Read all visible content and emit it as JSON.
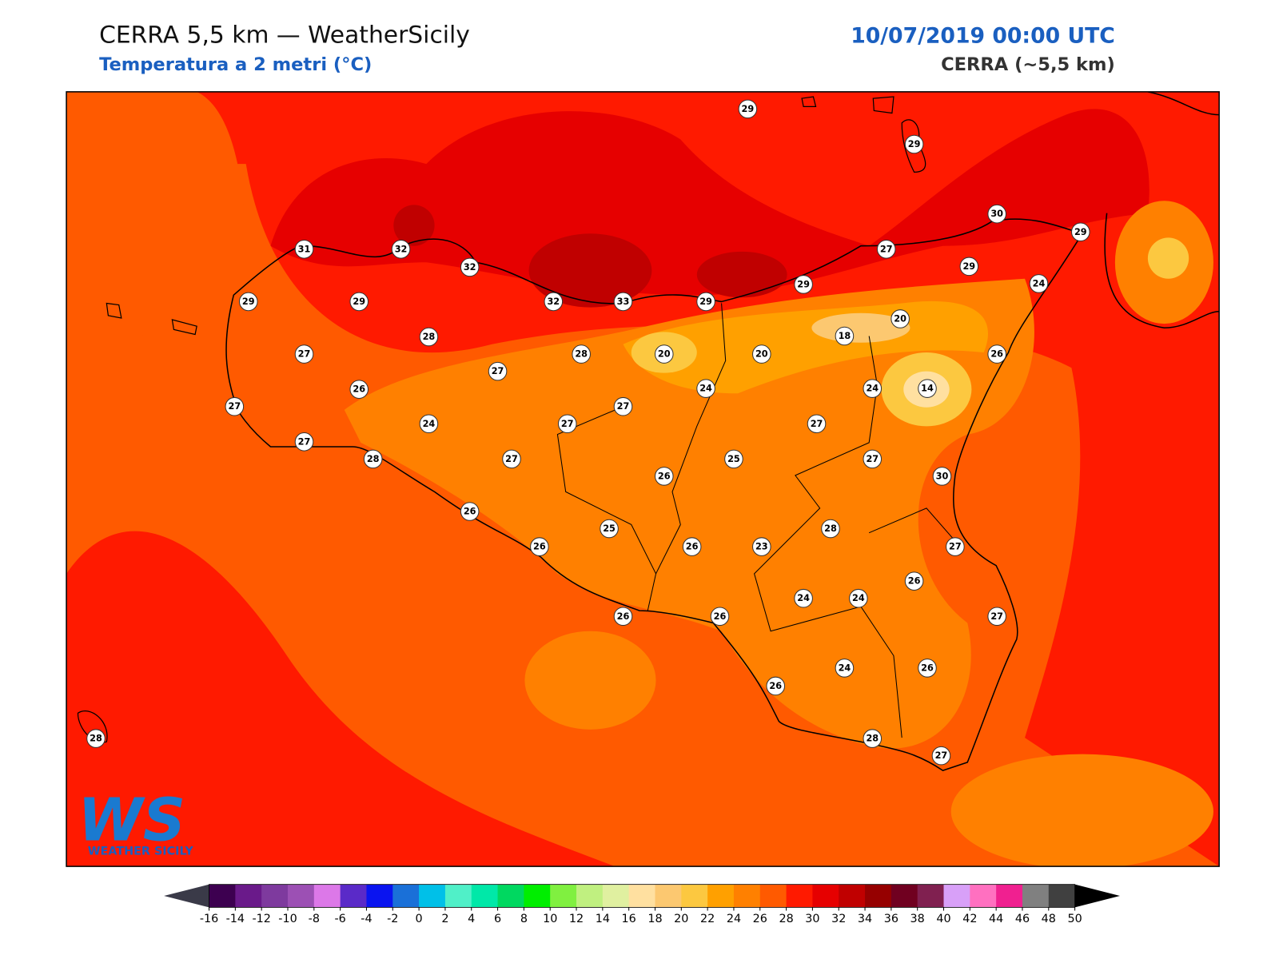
{
  "header": {
    "title": "CERRA 5,5 km — WeatherSicily",
    "subtitle": "Temperatura a 2 metri (°C)",
    "date": "10/07/2019 00:00 UTC",
    "model": "CERRA (~5,5 km)"
  },
  "logo": {
    "mark": "WS",
    "text": "WEATHER SICILY"
  },
  "stations": [
    29,
    29,
    30,
    29,
    27,
    29,
    24,
    31,
    32,
    32,
    29,
    29,
    32,
    33,
    29,
    29,
    20,
    18,
    28,
    27,
    28,
    20,
    20,
    26,
    27,
    26,
    24,
    24,
    14,
    27,
    27,
    24,
    27,
    27,
    27,
    28,
    27,
    25,
    27,
    30,
    26,
    26,
    28,
    25,
    26,
    26,
    23,
    27,
    26,
    24,
    24,
    26,
    26,
    27,
    24,
    26,
    26,
    28,
    28,
    27
  ],
  "colorbar": {
    "ticks": [
      -16,
      -14,
      -12,
      -10,
      -8,
      -6,
      -4,
      -2,
      0,
      2,
      4,
      6,
      8,
      10,
      12,
      14,
      16,
      18,
      20,
      22,
      24,
      26,
      28,
      30,
      32,
      34,
      36,
      38,
      40,
      42,
      44,
      46,
      48,
      50
    ],
    "under_color": "#3a3a48",
    "over_color": "#000000",
    "colors": [
      "#3d0050",
      "#6a1a8a",
      "#7e3a9e",
      "#9c50b4",
      "#dc78e8",
      "#5a2ac8",
      "#0a14f0",
      "#1a70d8",
      "#00c0e8",
      "#50f0c8",
      "#00e8a8",
      "#00d860",
      "#00ee00",
      "#80f040",
      "#c0f080",
      "#e0f0a0",
      "#ffe0a0",
      "#fcc870",
      "#fcc840",
      "#ffa000",
      "#ff8000",
      "#ff5a00",
      "#ff1a00",
      "#e60000",
      "#c00000",
      "#960000",
      "#700020",
      "#802050",
      "#d8a0f8",
      "#ff70c0",
      "#f02090",
      "#808080",
      "#404040"
    ]
  }
}
